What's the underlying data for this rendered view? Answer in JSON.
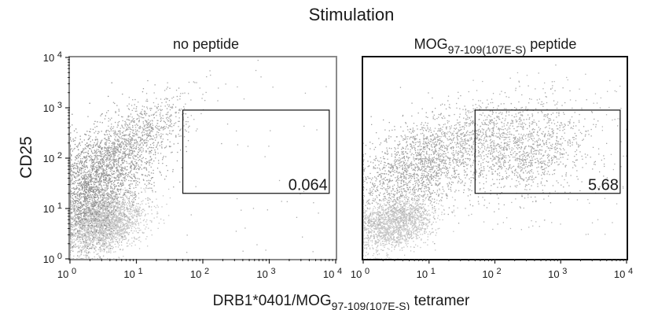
{
  "figure": {
    "title": "Stimulation",
    "ylabel": "CD25",
    "xlabel": {
      "main": "DRB1*0401/MOG",
      "sub": "97-109(107E-S)",
      "suffix": " tetramer"
    }
  },
  "chart_data": [
    {
      "type": "scatter",
      "title": "no peptide",
      "xlabel": "DRB1*0401/MOG97-109(107E-S) tetramer",
      "ylabel": "CD25",
      "xscale": "log",
      "yscale": "log",
      "xlim": [
        1,
        10000
      ],
      "ylim": [
        1,
        10000
      ],
      "x_ticks": [
        {
          "base": "10",
          "exp": "0"
        },
        {
          "base": "10",
          "exp": "1"
        },
        {
          "base": "10",
          "exp": "2"
        },
        {
          "base": "10",
          "exp": "3"
        },
        {
          "base": "10",
          "exp": "4"
        }
      ],
      "y_ticks": [
        {
          "base": "10",
          "exp": "0"
        },
        {
          "base": "10",
          "exp": "1"
        },
        {
          "base": "10",
          "exp": "2"
        },
        {
          "base": "10",
          "exp": "3"
        },
        {
          "base": "10",
          "exp": "4"
        }
      ],
      "gate": {
        "x": [
          50,
          8000
        ],
        "y": [
          20,
          900
        ],
        "value": "0.064"
      },
      "populations": [
        {
          "shape": "ellipse",
          "cx": 3,
          "cy": 5,
          "sx": 0.32,
          "sy": 0.3,
          "rho": 0.3,
          "n": 2600,
          "color": "#c4c4c4"
        },
        {
          "shape": "ellipse",
          "cx": 4,
          "cy": 60,
          "sx": 0.45,
          "sy": 0.55,
          "rho": 0.55,
          "n": 1600,
          "color": "#9a9a9a"
        },
        {
          "shape": "ellipse",
          "cx": 9,
          "cy": 250,
          "sx": 0.45,
          "sy": 0.45,
          "rho": 0.75,
          "n": 700,
          "color": "#a8a8a8"
        },
        {
          "shape": "ellipse",
          "cx": 1.8,
          "cy": 20,
          "sx": 0.25,
          "sy": 0.6,
          "rho": 0.1,
          "n": 900,
          "color": "#8c8c8c"
        },
        {
          "shape": "uniform",
          "x": [
            40,
            9000
          ],
          "y": [
            1,
            9000
          ],
          "n": 45,
          "color": "#aaaaaa"
        }
      ]
    },
    {
      "type": "scatter",
      "title": {
        "main": "MOG",
        "sub": "97-109(107E-S)",
        "suffix": " peptide"
      },
      "xlabel": "DRB1*0401/MOG97-109(107E-S) tetramer",
      "ylabel": "CD25",
      "xscale": "log",
      "yscale": "log",
      "xlim": [
        1,
        10000
      ],
      "ylim": [
        1,
        10000
      ],
      "x_ticks": [
        {
          "base": "10",
          "exp": "0"
        },
        {
          "base": "10",
          "exp": "1"
        },
        {
          "base": "10",
          "exp": "2"
        },
        {
          "base": "10",
          "exp": "3"
        },
        {
          "base": "10",
          "exp": "4"
        }
      ],
      "gate": {
        "x": [
          50,
          8000
        ],
        "y": [
          20,
          900
        ],
        "value": "5.68"
      },
      "populations": [
        {
          "shape": "ellipse",
          "cx": 3,
          "cy": 5,
          "sx": 0.3,
          "sy": 0.28,
          "rho": 0.3,
          "n": 1800,
          "color": "#c4c4c4"
        },
        {
          "shape": "ellipse",
          "cx": 6,
          "cy": 60,
          "sx": 0.45,
          "sy": 0.5,
          "rho": 0.4,
          "n": 1500,
          "color": "#a0a0a0"
        },
        {
          "shape": "ellipse",
          "cx": 300,
          "cy": 130,
          "sx": 0.5,
          "sy": 0.45,
          "rho": 0.25,
          "n": 1100,
          "color": "#a4a4a4"
        },
        {
          "shape": "ellipse",
          "cx": 40,
          "cy": 250,
          "sx": 0.45,
          "sy": 0.4,
          "rho": 0.5,
          "n": 600,
          "color": "#aaaaaa"
        },
        {
          "shape": "uniform",
          "x": [
            40,
            9000
          ],
          "y": [
            3,
            5000
          ],
          "n": 160,
          "color": "#b4b4b4"
        }
      ]
    }
  ]
}
